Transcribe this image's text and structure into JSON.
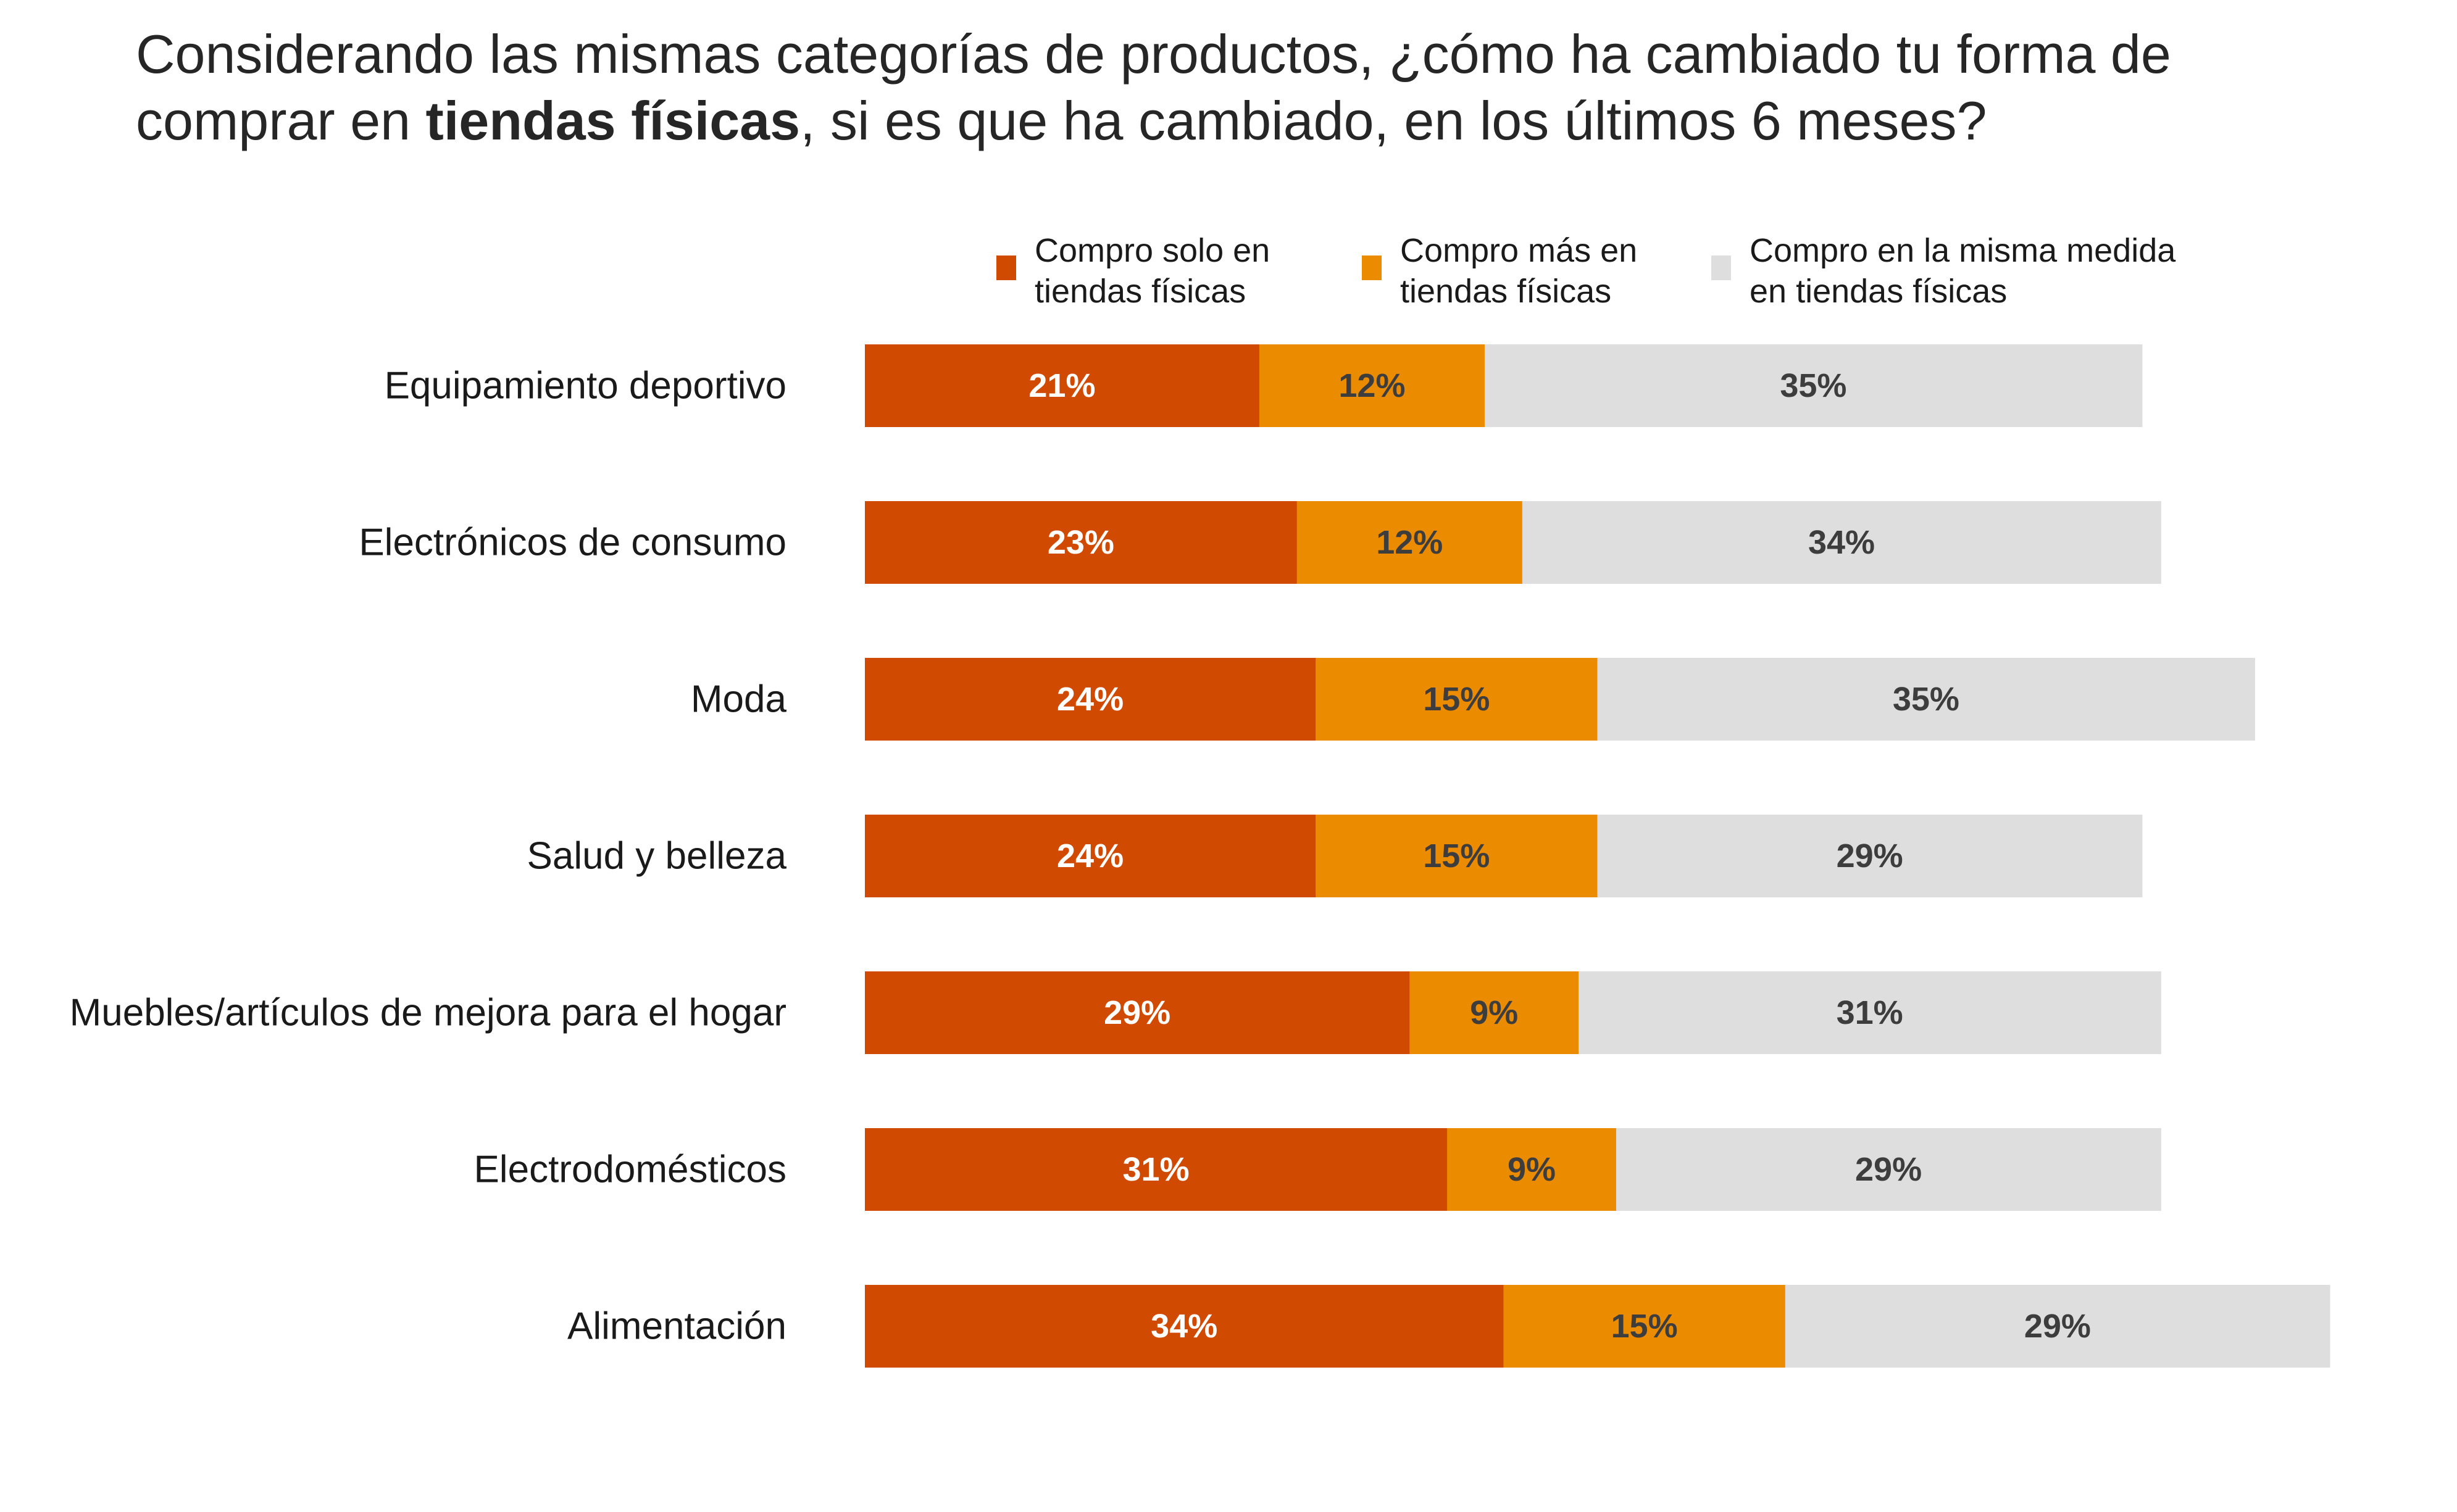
{
  "title": {
    "line1": "Considerando las mismas categorías de productos, ¿cómo ha cambiado tu forma de",
    "line2_prefix": "comprar en ",
    "line2_bold": "tiendas físicas",
    "line2_suffix": ", si es que ha cambiado, en los últimos 6 meses?"
  },
  "chart_data": {
    "type": "bar",
    "orientation": "horizontal",
    "stacked": true,
    "categories": [
      "Equipamiento deportivo",
      "Electrónicos de consumo",
      "Moda",
      "Salud y belleza",
      "Muebles/artículos de mejora para el hogar",
      "Electrodomésticos",
      "Alimentación"
    ],
    "series": [
      {
        "name_lines": [
          "Compro solo en",
          "tiendas físicas"
        ],
        "color": "#d04a02",
        "label_color": "#ffffff",
        "values": [
          21,
          23,
          24,
          24,
          29,
          31,
          34
        ],
        "labels": [
          "21%",
          "23%",
          "24%",
          "24%",
          "29%",
          "31%",
          "34%"
        ]
      },
      {
        "name_lines": [
          "Compro más en",
          "tiendas físicas"
        ],
        "color": "#eb8c00",
        "label_color": "#3d3d3d",
        "values": [
          12,
          12,
          15,
          15,
          9,
          9,
          15
        ],
        "labels": [
          "12%",
          "12%",
          "15%",
          "15%",
          "9%",
          "9%",
          "15%"
        ]
      },
      {
        "name_lines": [
          "Compro en la misma medida",
          "en tiendas físicas"
        ],
        "color": "#dedede",
        "label_color": "#3d3d3d",
        "values": [
          35,
          34,
          35,
          29,
          31,
          29,
          29
        ],
        "labels": [
          "35%",
          "34%",
          "35%",
          "29%",
          "31%",
          "29%",
          "29%"
        ]
      }
    ],
    "legend_position": "top",
    "grid": false
  }
}
